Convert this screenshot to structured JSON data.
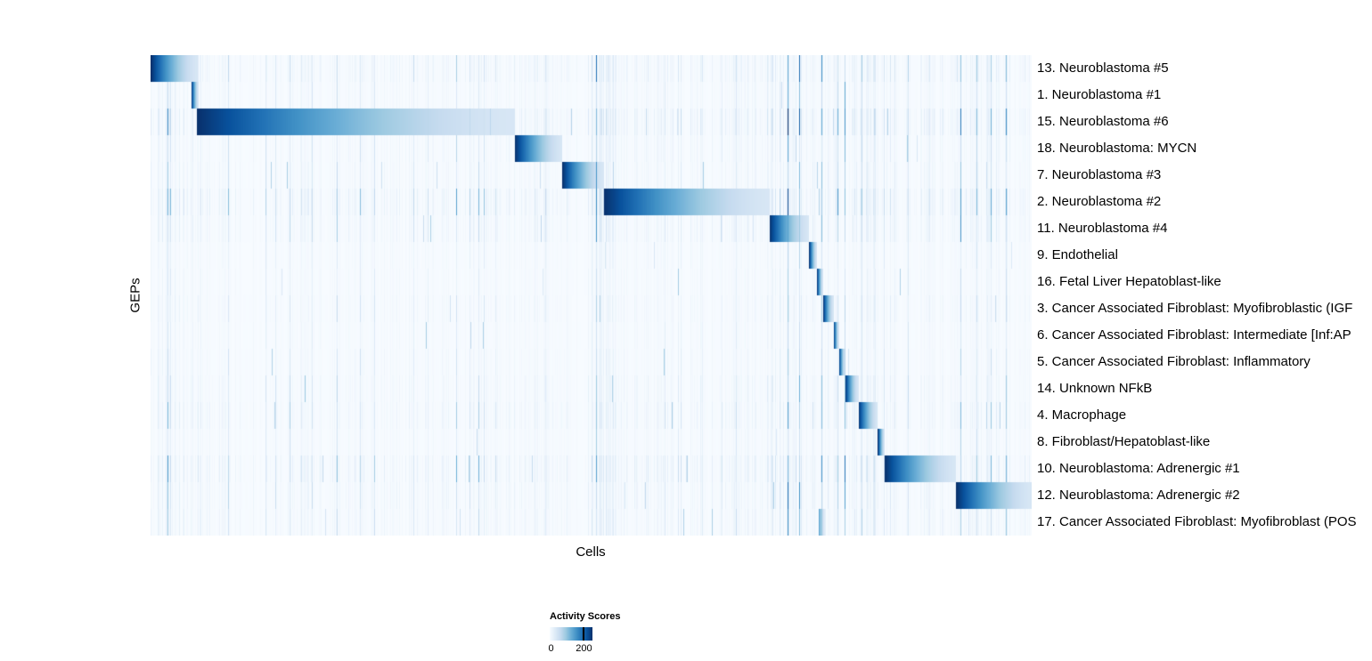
{
  "chart_data": {
    "type": "heatmap",
    "title": "",
    "xlabel": "Cells",
    "ylabel": "GEPs",
    "legend": {
      "title": "Activity Scores",
      "min": 0,
      "max": 200,
      "min_label": "0",
      "max_label": "200",
      "colormap": "Blues",
      "stops": [
        "#f7fbff",
        "#deebf7",
        "#c6dbef",
        "#9ecae1",
        "#6baed6",
        "#4292c6",
        "#2171b5",
        "#08519c",
        "#08306b"
      ],
      "tick_fraction": 0.8,
      "position": "bottom"
    },
    "grid": false,
    "x_axis": {
      "ticks": "none",
      "range_note": "cells sorted by dominant GEP"
    },
    "rows": [
      {
        "label": "13. Neuroblastoma #5",
        "block": {
          "start": 0.0,
          "end": 0.053,
          "peak": 1.0
        },
        "noise": 1.2
      },
      {
        "label": "1. Neuroblastoma #1",
        "block": {
          "start": 0.046,
          "end": 0.054,
          "peak": 1.0
        },
        "noise": 0.7
      },
      {
        "label": "15. Neuroblastoma #6",
        "block": {
          "start": 0.052,
          "end": 0.413,
          "peak": 1.0
        },
        "noise": 1.5
      },
      {
        "label": "18. Neuroblastoma: MYCN",
        "block": {
          "start": 0.413,
          "end": 0.467,
          "peak": 1.0
        },
        "noise": 0.8
      },
      {
        "label": "7. Neuroblastoma #3",
        "block": {
          "start": 0.467,
          "end": 0.514,
          "peak": 1.0
        },
        "noise": 0.8
      },
      {
        "label": "2. Neuroblastoma #2",
        "block": {
          "start": 0.514,
          "end": 0.702,
          "peak": 1.0
        },
        "noise": 1.6
      },
      {
        "label": "11. Neuroblastoma #4",
        "block": {
          "start": 0.702,
          "end": 0.747,
          "peak": 1.0
        },
        "noise": 1.0
      },
      {
        "label": "9. Endothelial",
        "block": {
          "start": 0.747,
          "end": 0.756,
          "peak": 1.0
        },
        "noise": 0.5
      },
      {
        "label": "16. Fetal Liver Hepatoblast-like",
        "block": {
          "start": 0.756,
          "end": 0.763,
          "peak": 1.0
        },
        "noise": 0.5
      },
      {
        "label": "3. Cancer Associated Fibroblast: Myofibroblastic (IGF",
        "block": {
          "start": 0.763,
          "end": 0.775,
          "peak": 1.0
        },
        "noise": 0.7
      },
      {
        "label": "6. Cancer Associated Fibroblast: Intermediate [Inf:AP",
        "block": {
          "start": 0.775,
          "end": 0.781,
          "peak": 1.0
        },
        "noise": 0.5
      },
      {
        "label": "5. Cancer Associated Fibroblast: Inflammatory",
        "block": {
          "start": 0.781,
          "end": 0.788,
          "peak": 1.0
        },
        "noise": 0.6
      },
      {
        "label": "14. Unknown NFkB",
        "block": {
          "start": 0.788,
          "end": 0.803,
          "peak": 1.0
        },
        "noise": 0.8
      },
      {
        "label": "4. Macrophage",
        "block": {
          "start": 0.803,
          "end": 0.825,
          "peak": 1.0
        },
        "noise": 1.0
      },
      {
        "label": "8. Fibroblast/Hepatoblast-like",
        "block": {
          "start": 0.825,
          "end": 0.833,
          "peak": 1.0
        },
        "noise": 0.6
      },
      {
        "label": "10. Neuroblastoma: Adrenergic #1",
        "block": {
          "start": 0.833,
          "end": 0.914,
          "peak": 1.0
        },
        "noise": 1.4
      },
      {
        "label": "12. Neuroblastoma: Adrenergic #2",
        "block": {
          "start": 0.914,
          "end": 1.0,
          "peak": 1.0
        },
        "noise": 1.0
      },
      {
        "label": "17. Cancer Associated Fibroblast: Myofibroblast (POS",
        "block": {
          "start": 0.758,
          "end": 0.766,
          "peak": 0.55
        },
        "noise": 0.9
      }
    ],
    "noise_regions": [
      {
        "start": 0.0,
        "end": 0.06,
        "gain": 1.6
      },
      {
        "start": 0.505,
        "end": 0.53,
        "gain": 2.4
      },
      {
        "start": 0.695,
        "end": 0.84,
        "gain": 2.2
      },
      {
        "start": 0.91,
        "end": 1.0,
        "gain": 1.7
      }
    ]
  },
  "colors": {
    "background": "#ffffff",
    "heatmap_low": "#f7fbff",
    "heatmap_high": "#08306b",
    "text": "#000000"
  }
}
